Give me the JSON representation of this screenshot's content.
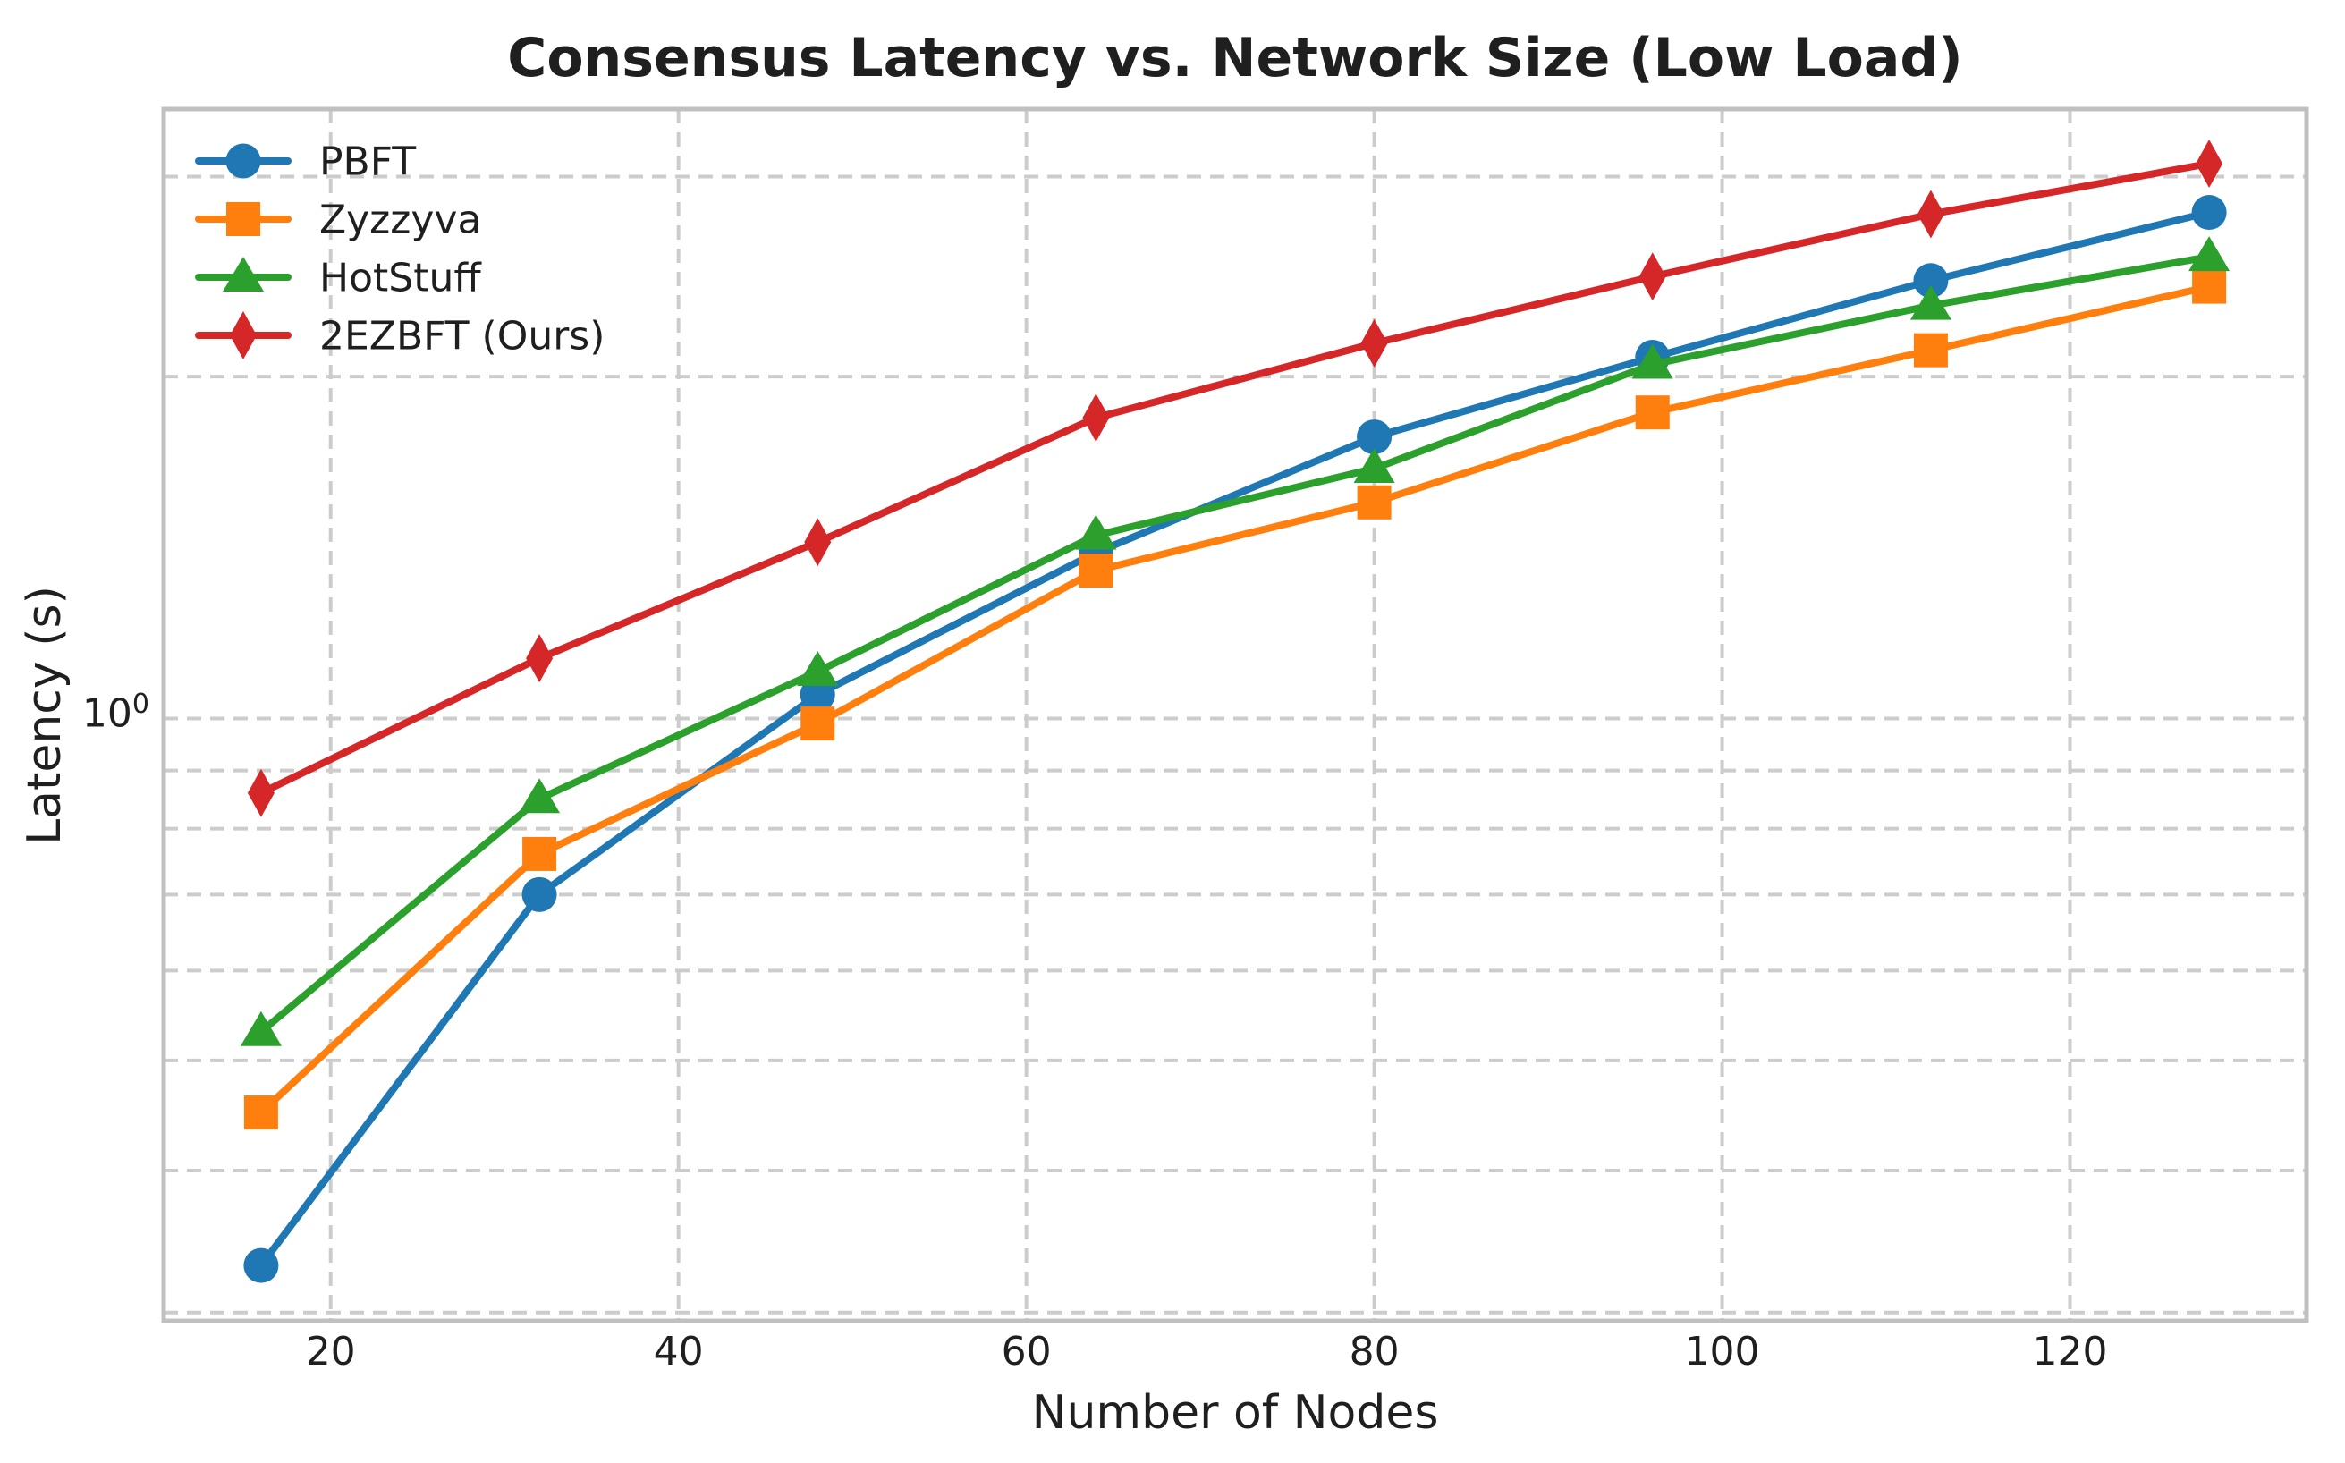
{
  "title": "Consensus Latency vs. Network Size (Low Load)",
  "chart_data": {
    "type": "line",
    "title": "Consensus Latency vs. Network Size (Low Load)",
    "xlabel": "Number of Nodes",
    "ylabel": "Latency (s)",
    "yscale": "log",
    "grid": true,
    "legend_position": "upper-left",
    "x": [
      16,
      32,
      48,
      64,
      80,
      96,
      112,
      128
    ],
    "series": [
      {
        "name": "PBFT",
        "color": "#1f77b4",
        "marker": "circle",
        "values": [
          0.33,
          0.7,
          1.05,
          1.4,
          1.77,
          2.08,
          2.43,
          2.79
        ]
      },
      {
        "name": "Zyzzyva",
        "color": "#ff7f0e",
        "marker": "square",
        "values": [
          0.45,
          0.76,
          0.99,
          1.35,
          1.55,
          1.86,
          2.11,
          2.4
        ]
      },
      {
        "name": "HotStuff",
        "color": "#2ca02c",
        "marker": "triangle",
        "values": [
          0.53,
          0.85,
          1.1,
          1.45,
          1.66,
          2.05,
          2.31,
          2.55
        ]
      },
      {
        "name": "2EZBFT (Ours)",
        "color": "#d62728",
        "marker": "diamond",
        "values": [
          0.86,
          1.13,
          1.43,
          1.84,
          2.14,
          2.45,
          2.78,
          3.08
        ]
      }
    ],
    "x_ticks": [
      20,
      40,
      60,
      80,
      100,
      120
    ],
    "y_major_tick": {
      "base": "10",
      "exponent": "0",
      "value": 1
    },
    "y_gridlines": [
      0.3,
      0.4,
      0.5,
      0.6,
      0.7,
      0.8,
      0.9,
      1,
      2,
      3
    ],
    "xlim": [
      10.4,
      133.6
    ],
    "ylim": [
      0.295,
      3.44
    ]
  },
  "styles": {
    "grid_color": "#cccccc",
    "spine_color": "#c0c0c0",
    "text_color": "#1f1f1f",
    "background": "#ffffff"
  }
}
